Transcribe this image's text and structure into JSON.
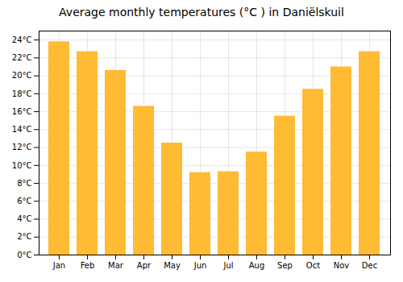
{
  "chart_data": {
    "type": "bar",
    "title": "Average monthly temperatures (°C ) in Daniëlskuil",
    "categories": [
      "Jan",
      "Feb",
      "Mar",
      "Apr",
      "May",
      "Jun",
      "Jul",
      "Aug",
      "Sep",
      "Oct",
      "Nov",
      "Dec"
    ],
    "values": [
      23.8,
      22.7,
      20.6,
      16.6,
      12.5,
      9.2,
      9.3,
      11.5,
      15.5,
      18.5,
      21.0,
      22.7
    ],
    "color": "#FFBB33",
    "ylim": [
      0,
      25
    ],
    "yticks": [
      {
        "value": 0,
        "label": "0°C"
      },
      {
        "value": 2,
        "label": "2°C"
      },
      {
        "value": 4,
        "label": "4°C"
      },
      {
        "value": 6,
        "label": "6°C"
      },
      {
        "value": 8,
        "label": "8°C"
      },
      {
        "value": 10,
        "label": "10°C"
      },
      {
        "value": 12,
        "label": "12°C"
      },
      {
        "value": 14,
        "label": "14°C"
      },
      {
        "value": 16,
        "label": "16°C"
      },
      {
        "value": 18,
        "label": "18°C"
      },
      {
        "value": 20,
        "label": "20°C"
      },
      {
        "value": 22,
        "label": "22°C"
      },
      {
        "value": 24,
        "label": "24°C"
      }
    ],
    "grid": true
  }
}
